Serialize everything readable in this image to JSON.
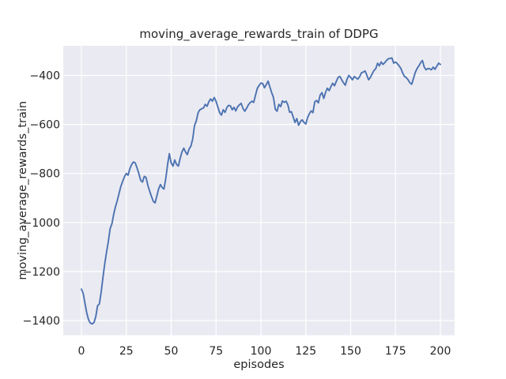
{
  "figure": {
    "background_color": "#ffffff",
    "axes_background_color": "#eaeaf2",
    "grid_color": "#ffffff",
    "text_color": "#262626"
  },
  "chart_data": {
    "type": "line",
    "title": "moving_average_rewards_train of DDPG",
    "xlabel": "episodes",
    "ylabel": "moving_average_rewards_train",
    "grid": true,
    "legend": null,
    "x_ticks": [
      0,
      25,
      50,
      75,
      100,
      125,
      150,
      175,
      200
    ],
    "x_tick_labels": [
      "0",
      "25",
      "50",
      "75",
      "100",
      "125",
      "150",
      "175",
      "200"
    ],
    "y_ticks": [
      -400,
      -600,
      -800,
      -1000,
      -1200,
      -1400
    ],
    "y_tick_labels": [
      "−400",
      "−600",
      "−800",
      "−1000",
      "−1200",
      "−1400"
    ],
    "xlim": [
      -10.13,
      207.92
    ],
    "ylim": [
      -1459.7,
      -279.1
    ],
    "series": [
      {
        "name": "moving_average_rewards_train",
        "color": "#4c72b0",
        "points": [
          [
            0,
            -1272
          ],
          [
            1,
            -1290
          ],
          [
            2,
            -1330
          ],
          [
            3,
            -1370
          ],
          [
            4,
            -1398
          ],
          [
            5,
            -1410
          ],
          [
            6,
            -1414
          ],
          [
            7,
            -1408
          ],
          [
            8,
            -1383
          ],
          [
            9,
            -1340
          ],
          [
            10,
            -1332
          ],
          [
            11,
            -1283
          ],
          [
            12,
            -1225
          ],
          [
            13,
            -1168
          ],
          [
            14,
            -1120
          ],
          [
            15,
            -1078
          ],
          [
            16,
            -1025
          ],
          [
            17,
            -1005
          ],
          [
            18,
            -965
          ],
          [
            19,
            -935
          ],
          [
            20,
            -910
          ],
          [
            21,
            -880
          ],
          [
            22,
            -852
          ],
          [
            23,
            -832
          ],
          [
            24,
            -813
          ],
          [
            25,
            -800
          ],
          [
            26,
            -807
          ],
          [
            27,
            -780
          ],
          [
            28,
            -763
          ],
          [
            29,
            -753
          ],
          [
            30,
            -757
          ],
          [
            31,
            -778
          ],
          [
            32,
            -800
          ],
          [
            33,
            -828
          ],
          [
            34,
            -835
          ],
          [
            35,
            -812
          ],
          [
            36,
            -816
          ],
          [
            37,
            -848
          ],
          [
            38,
            -872
          ],
          [
            39,
            -893
          ],
          [
            40,
            -913
          ],
          [
            41,
            -920
          ],
          [
            42,
            -893
          ],
          [
            43,
            -863
          ],
          [
            44,
            -845
          ],
          [
            45,
            -858
          ],
          [
            46,
            -863
          ],
          [
            47,
            -820
          ],
          [
            48,
            -763
          ],
          [
            49,
            -719
          ],
          [
            50,
            -757
          ],
          [
            51,
            -770
          ],
          [
            52,
            -745
          ],
          [
            53,
            -763
          ],
          [
            54,
            -770
          ],
          [
            55,
            -738
          ],
          [
            56,
            -712
          ],
          [
            57,
            -697
          ],
          [
            58,
            -712
          ],
          [
            59,
            -723
          ],
          [
            60,
            -700
          ],
          [
            61,
            -688
          ],
          [
            62,
            -660
          ],
          [
            63,
            -605
          ],
          [
            64,
            -585
          ],
          [
            65,
            -552
          ],
          [
            66,
            -540
          ],
          [
            67,
            -536
          ],
          [
            68,
            -533
          ],
          [
            69,
            -518
          ],
          [
            70,
            -526
          ],
          [
            71,
            -507
          ],
          [
            72,
            -496
          ],
          [
            73,
            -505
          ],
          [
            74,
            -490
          ],
          [
            75,
            -506
          ],
          [
            76,
            -528
          ],
          [
            77,
            -552
          ],
          [
            78,
            -562
          ],
          [
            79,
            -540
          ],
          [
            80,
            -551
          ],
          [
            81,
            -531
          ],
          [
            82,
            -522
          ],
          [
            83,
            -524
          ],
          [
            84,
            -540
          ],
          [
            85,
            -530
          ],
          [
            86,
            -545
          ],
          [
            87,
            -528
          ],
          [
            88,
            -520
          ],
          [
            89,
            -514
          ],
          [
            90,
            -534
          ],
          [
            91,
            -546
          ],
          [
            92,
            -535
          ],
          [
            93,
            -520
          ],
          [
            94,
            -511
          ],
          [
            95,
            -505
          ],
          [
            96,
            -510
          ],
          [
            97,
            -480
          ],
          [
            98,
            -452
          ],
          [
            99,
            -441
          ],
          [
            100,
            -431
          ],
          [
            101,
            -433
          ],
          [
            102,
            -450
          ],
          [
            103,
            -438
          ],
          [
            104,
            -423
          ],
          [
            105,
            -448
          ],
          [
            106,
            -470
          ],
          [
            107,
            -490
          ],
          [
            108,
            -538
          ],
          [
            109,
            -546
          ],
          [
            110,
            -518
          ],
          [
            111,
            -527
          ],
          [
            112,
            -504
          ],
          [
            113,
            -510
          ],
          [
            114,
            -505
          ],
          [
            115,
            -520
          ],
          [
            116,
            -550
          ],
          [
            117,
            -548
          ],
          [
            118,
            -570
          ],
          [
            119,
            -592
          ],
          [
            120,
            -576
          ],
          [
            121,
            -603
          ],
          [
            122,
            -588
          ],
          [
            123,
            -581
          ],
          [
            124,
            -592
          ],
          [
            125,
            -598
          ],
          [
            126,
            -572
          ],
          [
            127,
            -556
          ],
          [
            128,
            -545
          ],
          [
            129,
            -552
          ],
          [
            130,
            -508
          ],
          [
            131,
            -502
          ],
          [
            132,
            -512
          ],
          [
            133,
            -480
          ],
          [
            134,
            -470
          ],
          [
            135,
            -494
          ],
          [
            136,
            -470
          ],
          [
            137,
            -452
          ],
          [
            138,
            -462
          ],
          [
            139,
            -446
          ],
          [
            140,
            -432
          ],
          [
            141,
            -442
          ],
          [
            142,
            -424
          ],
          [
            143,
            -408
          ],
          [
            144,
            -404
          ],
          [
            145,
            -418
          ],
          [
            146,
            -430
          ],
          [
            147,
            -440
          ],
          [
            148,
            -415
          ],
          [
            149,
            -400
          ],
          [
            150,
            -408
          ],
          [
            151,
            -418
          ],
          [
            152,
            -404
          ],
          [
            153,
            -410
          ],
          [
            154,
            -415
          ],
          [
            155,
            -405
          ],
          [
            156,
            -390
          ],
          [
            157,
            -386
          ],
          [
            158,
            -382
          ],
          [
            159,
            -398
          ],
          [
            160,
            -418
          ],
          [
            161,
            -408
          ],
          [
            162,
            -393
          ],
          [
            163,
            -380
          ],
          [
            164,
            -372
          ],
          [
            165,
            -350
          ],
          [
            166,
            -361
          ],
          [
            167,
            -345
          ],
          [
            168,
            -355
          ],
          [
            169,
            -348
          ],
          [
            170,
            -339
          ],
          [
            171,
            -332
          ],
          [
            172,
            -330
          ],
          [
            173,
            -329
          ],
          [
            174,
            -350
          ],
          [
            175,
            -345
          ],
          [
            176,
            -352
          ],
          [
            177,
            -361
          ],
          [
            178,
            -372
          ],
          [
            179,
            -390
          ],
          [
            180,
            -404
          ],
          [
            181,
            -409
          ],
          [
            182,
            -418
          ],
          [
            183,
            -430
          ],
          [
            184,
            -436
          ],
          [
            185,
            -412
          ],
          [
            186,
            -388
          ],
          [
            187,
            -372
          ],
          [
            188,
            -361
          ],
          [
            189,
            -348
          ],
          [
            190,
            -339
          ],
          [
            191,
            -366
          ],
          [
            192,
            -377
          ],
          [
            193,
            -372
          ],
          [
            194,
            -373
          ],
          [
            195,
            -377
          ],
          [
            196,
            -366
          ],
          [
            197,
            -375
          ],
          [
            198,
            -362
          ],
          [
            199,
            -350
          ],
          [
            200,
            -355
          ]
        ]
      }
    ]
  }
}
